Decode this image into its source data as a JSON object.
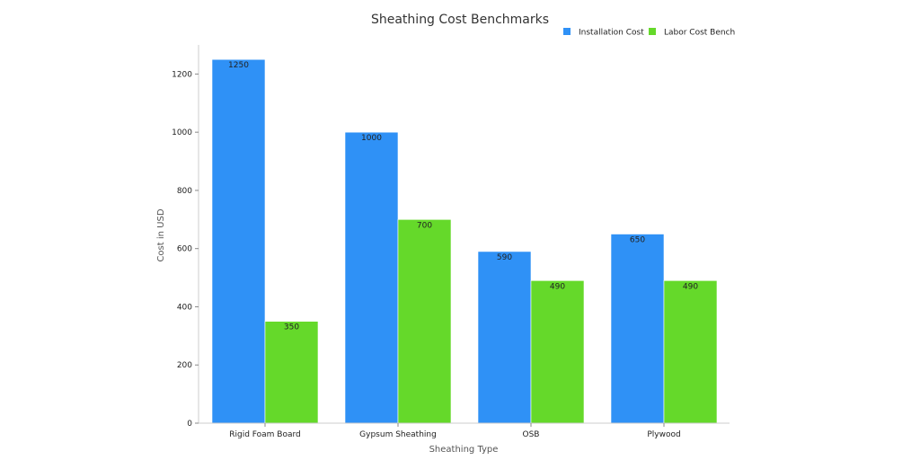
{
  "chart_data": {
    "type": "bar",
    "title": "Sheathing Cost Benchmarks",
    "xlabel": "Sheathing Type",
    "ylabel": "Cost in USD",
    "categories": [
      "Rigid Foam Board",
      "Gypsum Sheathing",
      "OSB",
      "Plywood"
    ],
    "series": [
      {
        "name": "Installation Cost",
        "color": "#2f91f6",
        "values": [
          1250,
          1000,
          590,
          650
        ]
      },
      {
        "name": "Labor Cost Bench",
        "color": "#65d92a",
        "values": [
          350,
          700,
          490,
          490
        ]
      }
    ],
    "ylim": [
      0,
      1300
    ],
    "yticks": [
      0,
      200,
      400,
      600,
      800,
      1000,
      1200
    ],
    "grid": false,
    "legend_position": "top-right"
  }
}
